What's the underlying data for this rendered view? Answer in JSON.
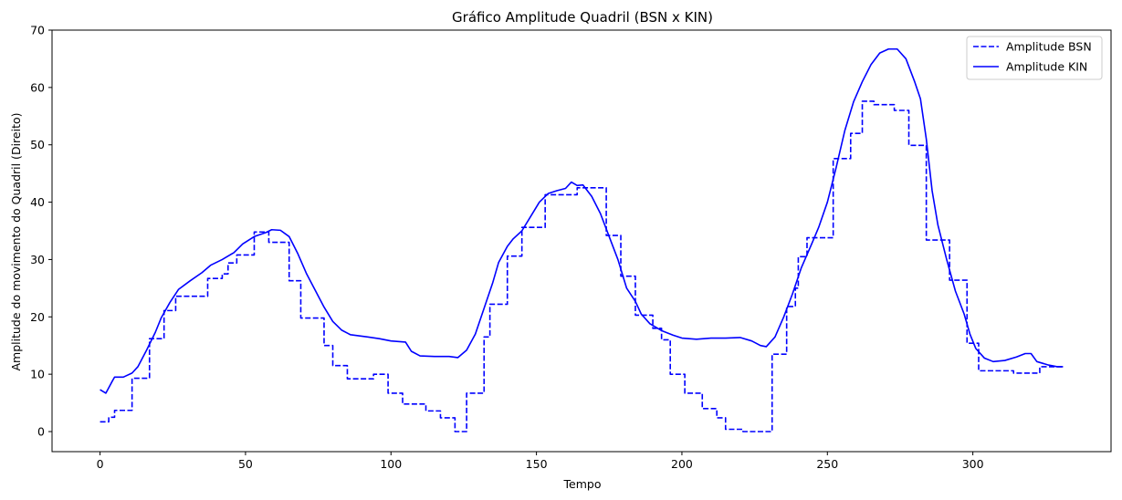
{
  "chart_data": {
    "type": "line",
    "title": "Gráfico Amplitude Quadril (BSN x KIN)",
    "xlabel": "Tempo",
    "ylabel": "Amplitude do movimento do Quadril (Direito)",
    "xlim": [
      -16.5,
      347.5
    ],
    "ylim": [
      -3.5,
      70
    ],
    "xticks": [
      0,
      50,
      100,
      150,
      200,
      250,
      300
    ],
    "yticks": [
      0,
      10,
      20,
      30,
      40,
      50,
      60,
      70
    ],
    "grid": false,
    "legend_position": "top-right",
    "series": [
      {
        "name": "Amplitude BSN",
        "style": "dashed",
        "color": "#0000ff",
        "points": [
          [
            0,
            1.7
          ],
          [
            3,
            1.7
          ],
          [
            3,
            2.5
          ],
          [
            5,
            2.5
          ],
          [
            5,
            3.7
          ],
          [
            11,
            3.7
          ],
          [
            11,
            9.3
          ],
          [
            17,
            9.3
          ],
          [
            17,
            16.2
          ],
          [
            22,
            16.2
          ],
          [
            22,
            21.1
          ],
          [
            26,
            21.1
          ],
          [
            26,
            23.6
          ],
          [
            37,
            23.6
          ],
          [
            37,
            26.7
          ],
          [
            42,
            26.7
          ],
          [
            42,
            27.5
          ],
          [
            44,
            27.5
          ],
          [
            44,
            29.4
          ],
          [
            47,
            29.4
          ],
          [
            47,
            30.8
          ],
          [
            53,
            30.8
          ],
          [
            53,
            34.8
          ],
          [
            58,
            34.8
          ],
          [
            58,
            33
          ],
          [
            65,
            33
          ],
          [
            65,
            26.3
          ],
          [
            69,
            26.3
          ],
          [
            69,
            19.8
          ],
          [
            77,
            19.8
          ],
          [
            77,
            15
          ],
          [
            80,
            15
          ],
          [
            80,
            11.5
          ],
          [
            85,
            11.5
          ],
          [
            85,
            9.2
          ],
          [
            94,
            9.2
          ],
          [
            94,
            10
          ],
          [
            99,
            10
          ],
          [
            99,
            6.7
          ],
          [
            104,
            6.7
          ],
          [
            104,
            4.8
          ],
          [
            112,
            4.8
          ],
          [
            112,
            3.6
          ],
          [
            117,
            3.6
          ],
          [
            117,
            2.4
          ],
          [
            122,
            2.4
          ],
          [
            122,
            0
          ],
          [
            126,
            0
          ],
          [
            126,
            6.7
          ],
          [
            132,
            6.7
          ],
          [
            132,
            16.5
          ],
          [
            134,
            16.5
          ],
          [
            134,
            22.2
          ],
          [
            140,
            22.2
          ],
          [
            140,
            30.6
          ],
          [
            145,
            30.6
          ],
          [
            145,
            35.6
          ],
          [
            153,
            35.6
          ],
          [
            153,
            41.3
          ],
          [
            164,
            41.3
          ],
          [
            164,
            42.5
          ],
          [
            174,
            42.5
          ],
          [
            174,
            34.2
          ],
          [
            179,
            34.2
          ],
          [
            179,
            27.1
          ],
          [
            184,
            27.1
          ],
          [
            184,
            20.3
          ],
          [
            190,
            20.3
          ],
          [
            190,
            18
          ],
          [
            193,
            18
          ],
          [
            193,
            16
          ],
          [
            196,
            16
          ],
          [
            196,
            10
          ],
          [
            201,
            10
          ],
          [
            201,
            6.7
          ],
          [
            207,
            6.7
          ],
          [
            207,
            4
          ],
          [
            212,
            4
          ],
          [
            212,
            2.4
          ],
          [
            215,
            2.4
          ],
          [
            215,
            0.4
          ],
          [
            221,
            0.4
          ],
          [
            221,
            0
          ],
          [
            231,
            0
          ],
          [
            231,
            13.5
          ],
          [
            236,
            13.5
          ],
          [
            236,
            21.8
          ],
          [
            239,
            21.8
          ],
          [
            239,
            25
          ],
          [
            240,
            25
          ],
          [
            240,
            30.5
          ],
          [
            243,
            30.5
          ],
          [
            243,
            33.8
          ],
          [
            252,
            33.8
          ],
          [
            252,
            47.6
          ],
          [
            258,
            47.6
          ],
          [
            258,
            52
          ],
          [
            262,
            52
          ],
          [
            262,
            57.6
          ],
          [
            266,
            57.6
          ],
          [
            266,
            57
          ],
          [
            273,
            57
          ],
          [
            273,
            56
          ],
          [
            278,
            56
          ],
          [
            278,
            49.9
          ],
          [
            284,
            49.9
          ],
          [
            284,
            33.4
          ],
          [
            292,
            33.4
          ],
          [
            292,
            26.4
          ],
          [
            298,
            26.4
          ],
          [
            298,
            15.4
          ],
          [
            302,
            15.4
          ],
          [
            302,
            10.6
          ],
          [
            314,
            10.6
          ],
          [
            314,
            10.2
          ],
          [
            323,
            10.2
          ],
          [
            323,
            11.3
          ],
          [
            331,
            11.3
          ]
        ]
      },
      {
        "name": "Amplitude KIN",
        "style": "solid",
        "color": "#0000ff",
        "points": [
          [
            0,
            7.3
          ],
          [
            2,
            6.7
          ],
          [
            4,
            8.6
          ],
          [
            5,
            9.5
          ],
          [
            8,
            9.5
          ],
          [
            11,
            10.2
          ],
          [
            13,
            11.3
          ],
          [
            16,
            14.2
          ],
          [
            19,
            17.3
          ],
          [
            21,
            19.8
          ],
          [
            24,
            22.5
          ],
          [
            27,
            24.8
          ],
          [
            31,
            26.3
          ],
          [
            35,
            27.7
          ],
          [
            38,
            29
          ],
          [
            42,
            30
          ],
          [
            46,
            31.2
          ],
          [
            49,
            32.7
          ],
          [
            53,
            34
          ],
          [
            57,
            34.7
          ],
          [
            59,
            35.2
          ],
          [
            62,
            35.1
          ],
          [
            65,
            34
          ],
          [
            68,
            31
          ],
          [
            71,
            27.5
          ],
          [
            74,
            24.6
          ],
          [
            77,
            21.7
          ],
          [
            80,
            19.2
          ],
          [
            83,
            17.7
          ],
          [
            86,
            16.9
          ],
          [
            92,
            16.5
          ],
          [
            96,
            16.2
          ],
          [
            100,
            15.8
          ],
          [
            105,
            15.6
          ],
          [
            107,
            14
          ],
          [
            110,
            13.2
          ],
          [
            115,
            13.1
          ],
          [
            120,
            13.1
          ],
          [
            123,
            12.9
          ],
          [
            126,
            14.2
          ],
          [
            129,
            17
          ],
          [
            132,
            21.5
          ],
          [
            135,
            26
          ],
          [
            137,
            29.5
          ],
          [
            140,
            32.3
          ],
          [
            142,
            33.6
          ],
          [
            145,
            35
          ],
          [
            148,
            37.5
          ],
          [
            151,
            40
          ],
          [
            154,
            41.5
          ],
          [
            157,
            42
          ],
          [
            160,
            42.4
          ],
          [
            162,
            43.5
          ],
          [
            164,
            42.9
          ],
          [
            166,
            43
          ],
          [
            169,
            41
          ],
          [
            172,
            38
          ],
          [
            175,
            34
          ],
          [
            178,
            30
          ],
          [
            181,
            25
          ],
          [
            184,
            22.7
          ],
          [
            186,
            20.5
          ],
          [
            189,
            18.8
          ],
          [
            193,
            17.6
          ],
          [
            197,
            16.8
          ],
          [
            200,
            16.3
          ],
          [
            205,
            16.1
          ],
          [
            210,
            16.3
          ],
          [
            215,
            16.3
          ],
          [
            220,
            16.4
          ],
          [
            224,
            15.8
          ],
          [
            227,
            15
          ],
          [
            229,
            14.8
          ],
          [
            232,
            16.5
          ],
          [
            235,
            20
          ],
          [
            238,
            24
          ],
          [
            241,
            28.5
          ],
          [
            244,
            32
          ],
          [
            247,
            35.6
          ],
          [
            250,
            40
          ],
          [
            253,
            46
          ],
          [
            256,
            52.5
          ],
          [
            259,
            57.5
          ],
          [
            262,
            61
          ],
          [
            265,
            64
          ],
          [
            268,
            66
          ],
          [
            271,
            66.7
          ],
          [
            274,
            66.7
          ],
          [
            277,
            65
          ],
          [
            280,
            61
          ],
          [
            282,
            58
          ],
          [
            284,
            51
          ],
          [
            286,
            42
          ],
          [
            288,
            36
          ],
          [
            291,
            30
          ],
          [
            294,
            24.5
          ],
          [
            297,
            20.5
          ],
          [
            299,
            17
          ],
          [
            301,
            14.5
          ],
          [
            304,
            12.8
          ],
          [
            307,
            12.2
          ],
          [
            311,
            12.4
          ],
          [
            315,
            13
          ],
          [
            318,
            13.6
          ],
          [
            320,
            13.6
          ],
          [
            322,
            12.2
          ],
          [
            326,
            11.6
          ],
          [
            329,
            11.3
          ],
          [
            331,
            11.3
          ]
        ]
      }
    ]
  }
}
